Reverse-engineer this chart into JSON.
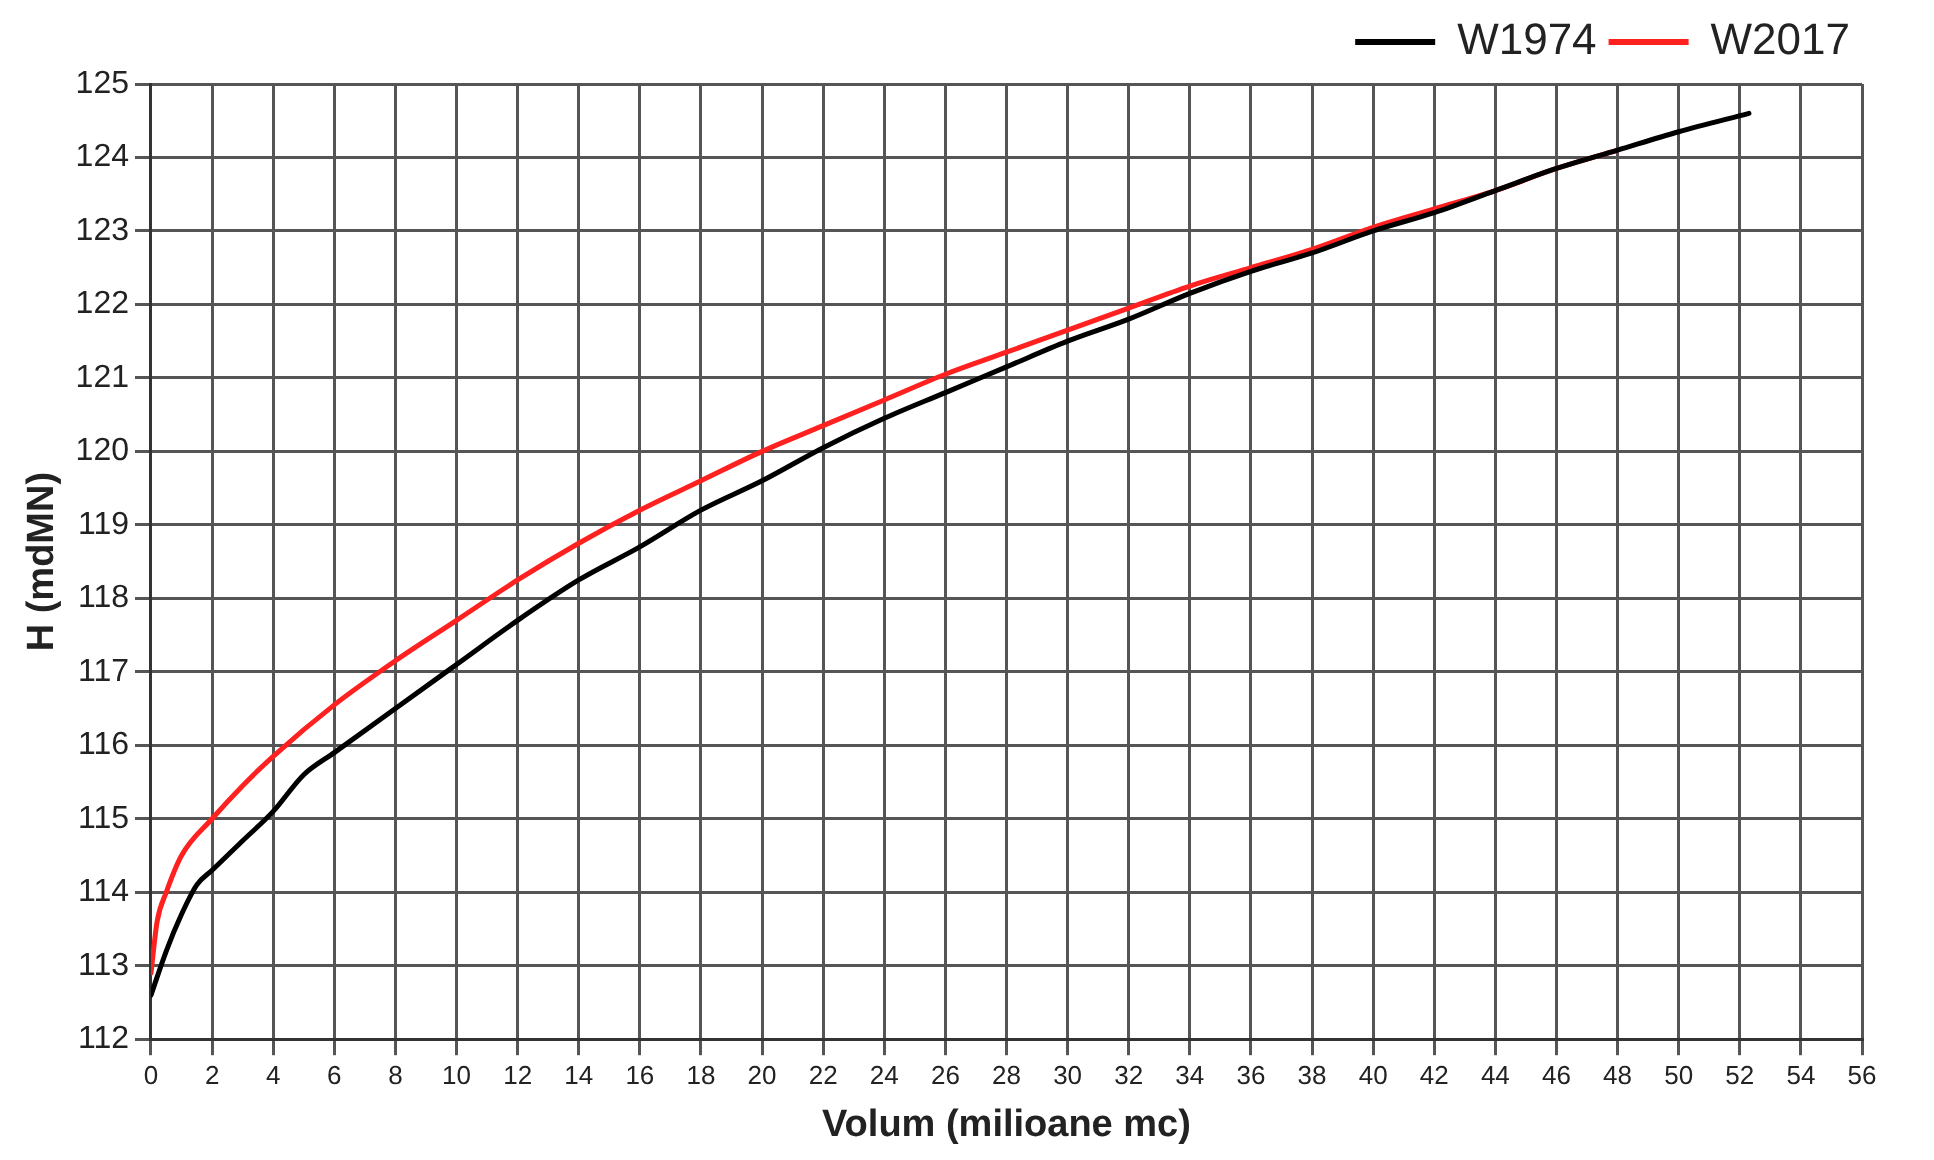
{
  "chart_data": {
    "type": "line",
    "xlabel": "Volum (milioane mc)",
    "ylabel": "H (mdMN)",
    "xlim": [
      0,
      56
    ],
    "xticks": [
      0,
      2,
      4,
      6,
      8,
      10,
      12,
      14,
      16,
      18,
      20,
      22,
      24,
      26,
      28,
      30,
      32,
      34,
      36,
      38,
      40,
      42,
      44,
      46,
      48,
      50,
      52,
      54,
      56
    ],
    "ylim": [
      112,
      125
    ],
    "yticks": [
      112,
      113,
      114,
      115,
      116,
      117,
      118,
      119,
      120,
      121,
      122,
      123,
      124,
      125
    ],
    "grid": true,
    "legend": "top right",
    "marker": "none",
    "line_style": "solid",
    "series": [
      {
        "name": "W1974",
        "color": "#000000",
        "x": [
          0,
          0.5,
          1,
          1.5,
          2,
          3,
          4,
          5,
          6,
          8,
          10,
          12,
          14,
          16,
          18,
          20,
          22,
          24,
          26,
          28,
          30,
          32,
          34,
          36,
          38,
          40,
          42,
          44,
          46,
          48,
          50,
          52.3
        ],
        "values": [
          112.6,
          113.2,
          113.7,
          114.1,
          114.3,
          114.7,
          115.1,
          115.6,
          115.9,
          116.5,
          117.1,
          117.7,
          118.25,
          118.7,
          119.2,
          119.6,
          120.05,
          120.45,
          120.8,
          121.15,
          121.5,
          121.8,
          122.15,
          122.45,
          122.7,
          123.0,
          123.25,
          123.55,
          123.85,
          124.1,
          124.35,
          124.6
        ]
      },
      {
        "name": "W2017",
        "color": "#ff2020",
        "x": [
          0,
          0.2,
          0.5,
          1,
          2,
          3,
          4,
          6,
          8,
          10,
          12,
          14,
          16,
          18,
          20,
          22,
          24,
          26,
          28,
          30,
          32,
          34,
          36,
          38,
          40,
          42,
          44,
          46,
          48
        ],
        "values": [
          112.9,
          113.6,
          114.0,
          114.5,
          115.0,
          115.45,
          115.85,
          116.55,
          117.15,
          117.7,
          118.25,
          118.75,
          119.2,
          119.6,
          120.0,
          120.35,
          120.7,
          121.05,
          121.35,
          121.65,
          121.95,
          122.25,
          122.5,
          122.75,
          123.05,
          123.3,
          123.55,
          123.85,
          124.1
        ]
      }
    ]
  }
}
